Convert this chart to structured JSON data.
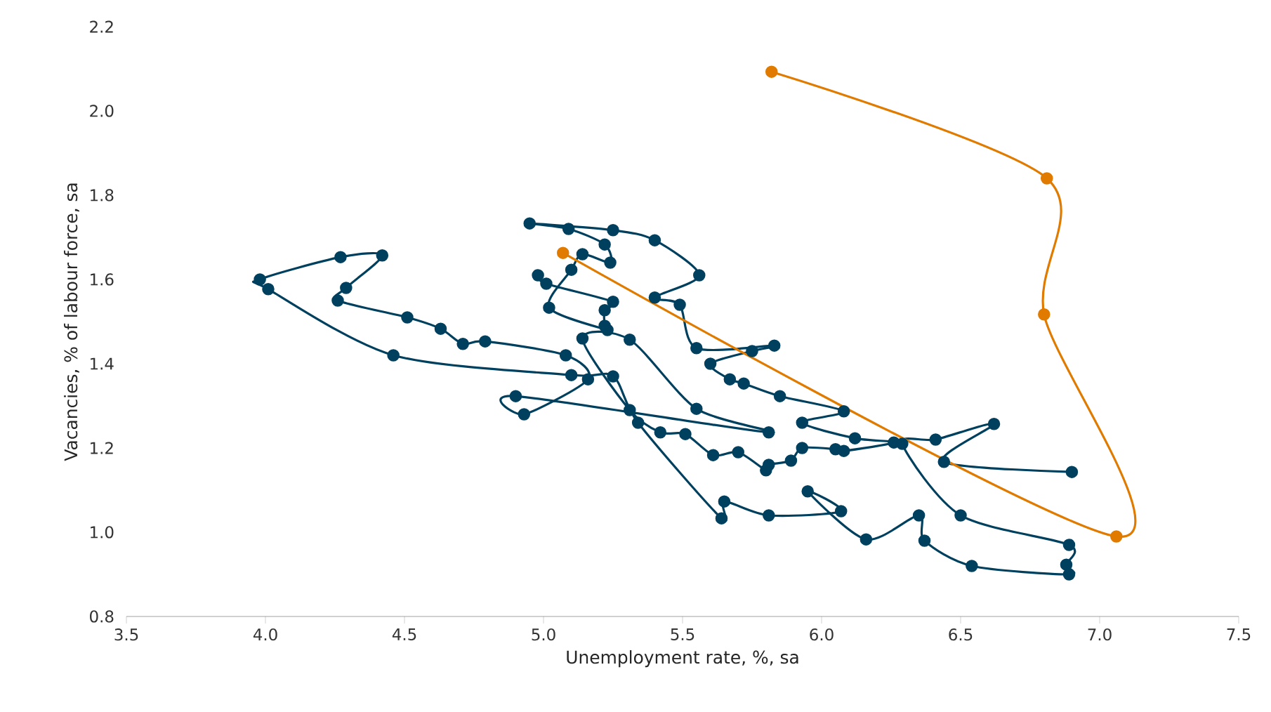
{
  "chart_data": {
    "type": "line",
    "xlabel": "Unemployment rate, %, sa",
    "ylabel": "Vacancies, % of labour force, sa",
    "marker": "circle",
    "xlim": [
      3.5,
      7.5
    ],
    "ylim": [
      0.8,
      2.2
    ],
    "xticks": [
      3.5,
      {
        "value": 4,
        "label": "4.0"
      },
      4.5,
      {
        "value": 5,
        "label": "5.0"
      },
      5.5,
      {
        "value": 6,
        "label": "6.0"
      },
      6.5,
      {
        "value": 7,
        "label": "7.0"
      },
      7.5
    ],
    "yticks": [
      0.8,
      {
        "value": 1,
        "label": "1.0"
      },
      1.2,
      1.4,
      1.6,
      1.8,
      {
        "value": 2,
        "label": "2.0"
      },
      2.2
    ],
    "series": [
      {
        "color": "#00405f",
        "x": [
          4.98,
          5.01,
          5.25,
          5.22,
          5.22,
          5.23,
          5.02,
          5.1,
          5.14,
          5.24,
          5.22,
          5.09,
          4.95,
          5.25,
          5.4,
          5.56,
          5.4,
          5.49,
          5.55,
          5.83,
          5.75,
          5.6,
          5.67,
          5.72,
          5.85,
          6.08,
          5.93,
          6.12,
          6.26,
          6.08,
          6.05,
          5.93,
          5.89,
          5.81,
          5.8,
          5.7,
          5.61,
          5.51,
          5.42,
          5.31,
          5.14,
          5.31,
          5.55,
          5.81,
          4.9,
          4.93,
          5.16,
          5.08,
          4.79,
          4.71,
          4.63,
          4.51,
          4.26,
          4.29,
          4.42,
          4.27,
          3.98,
          4.01,
          4.46,
          5.1,
          5.25,
          5.34,
          5.64,
          5.65,
          5.81,
          6.07,
          5.95,
          6.16,
          6.35,
          6.37,
          6.54,
          6.89,
          6.88,
          6.89,
          6.5,
          6.29,
          6.41,
          6.62,
          6.44,
          6.9
        ],
        "values": [
          1.61,
          1.59,
          1.547,
          1.527,
          1.49,
          1.48,
          1.533,
          1.623,
          1.66,
          1.64,
          1.683,
          1.72,
          1.733,
          1.717,
          1.693,
          1.61,
          1.557,
          1.54,
          1.437,
          1.443,
          1.43,
          1.4,
          1.363,
          1.353,
          1.323,
          1.287,
          1.26,
          1.223,
          1.213,
          1.193,
          1.197,
          1.2,
          1.17,
          1.16,
          1.147,
          1.19,
          1.183,
          1.233,
          1.237,
          1.29,
          1.46,
          1.457,
          1.293,
          1.237,
          1.323,
          1.28,
          1.363,
          1.42,
          1.453,
          1.447,
          1.483,
          1.51,
          1.55,
          1.58,
          1.657,
          1.653,
          1.6,
          1.577,
          1.42,
          1.373,
          1.37,
          1.26,
          1.033,
          1.073,
          1.04,
          1.05,
          1.097,
          0.983,
          1.04,
          0.98,
          0.92,
          0.9,
          0.923,
          0.97,
          1.04,
          1.21,
          1.22,
          1.257,
          1.167,
          1.143
        ]
      },
      {
        "color": "#e07b00",
        "x": [
          5.82,
          6.81,
          6.8,
          7.06,
          5.07
        ],
        "values": [
          2.093,
          1.84,
          1.517,
          0.99,
          1.663
        ]
      }
    ]
  }
}
